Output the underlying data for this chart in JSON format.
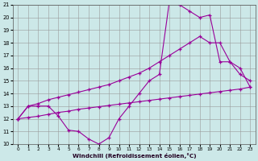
{
  "xlabel": "Windchill (Refroidissement éolien,°C)",
  "bg_color": "#cce8e8",
  "line_color": "#990099",
  "xlim": [
    -0.5,
    23.5
  ],
  "ylim": [
    10,
    21
  ],
  "yticks": [
    10,
    11,
    12,
    13,
    14,
    15,
    16,
    17,
    18,
    19,
    20,
    21
  ],
  "xticks": [
    0,
    1,
    2,
    3,
    4,
    5,
    6,
    7,
    8,
    9,
    10,
    11,
    12,
    13,
    14,
    15,
    16,
    17,
    18,
    19,
    20,
    21,
    22,
    23
  ],
  "line1_x": [
    0,
    1,
    2,
    3,
    4,
    5,
    6,
    7,
    8,
    9,
    10,
    11,
    12,
    13,
    14,
    15,
    16,
    17,
    18,
    19,
    20,
    21,
    22,
    23
  ],
  "line1_y": [
    12,
    13,
    13,
    13,
    12.2,
    11.1,
    11.0,
    10.4,
    10.0,
    10.5,
    12.0,
    13.0,
    14.0,
    15.0,
    15.5,
    21.3,
    21.0,
    20.5,
    20.0,
    20.2,
    16.5,
    16.5,
    15.5,
    15.0
  ],
  "line2_x": [
    0,
    1,
    2,
    3,
    4,
    5,
    6,
    7,
    8,
    9,
    10,
    11,
    12,
    13,
    14,
    15,
    16,
    17,
    18,
    19,
    20,
    21,
    22,
    23
  ],
  "line2_y": [
    12,
    13,
    13.2,
    13.5,
    13.7,
    13.9,
    14.1,
    14.3,
    14.5,
    14.7,
    15.0,
    15.3,
    15.6,
    16.0,
    16.5,
    17.0,
    17.5,
    18.0,
    18.5,
    18.0,
    18.0,
    16.5,
    16.0,
    14.5
  ],
  "line3_x": [
    0,
    1,
    2,
    3,
    4,
    5,
    6,
    7,
    8,
    9,
    10,
    11,
    12,
    13,
    14,
    15,
    16,
    17,
    18,
    19,
    20,
    21,
    22,
    23
  ],
  "line3_y": [
    12.0,
    12.1,
    12.2,
    12.35,
    12.5,
    12.6,
    12.75,
    12.85,
    12.95,
    13.05,
    13.15,
    13.25,
    13.35,
    13.45,
    13.55,
    13.65,
    13.75,
    13.85,
    13.95,
    14.05,
    14.15,
    14.25,
    14.35,
    14.5
  ]
}
